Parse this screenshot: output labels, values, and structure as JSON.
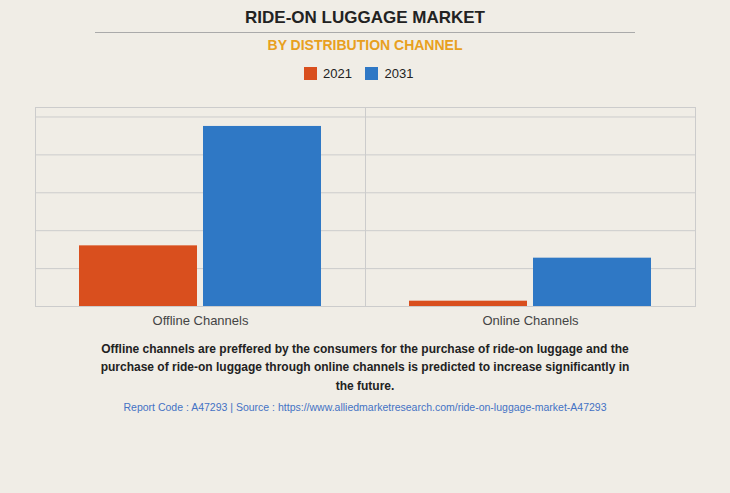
{
  "chart_data": {
    "type": "bar",
    "title": "RIDE-ON LUGGAGE MARKET",
    "subtitle": "BY DISTRIBUTION CHANNEL",
    "categories": [
      "Offline Channels",
      "Online Channels"
    ],
    "series": [
      {
        "name": "2021",
        "color": "#D94F1E",
        "values": [
          3.2,
          0.28
        ]
      },
      {
        "name": "2031",
        "color": "#2F78C5",
        "values": [
          9.5,
          2.55
        ]
      }
    ],
    "ylim": [
      0,
      10.5
    ],
    "yticks": [
      0,
      2,
      4,
      6,
      8,
      10
    ],
    "grid": true,
    "legend": "top",
    "tick_labels": "x",
    "annotations": [
      "Offline channels are preffered by the consumers for the purchase of ride-on luggage and the\npurchase of ride-on luggage through online channels is predicted to increase significantly in\nthe future.",
      "Report Code : A47293  |  Source : https://www.alliedmarketresearch.com/ride-on-luggage-market-A47293"
    ]
  }
}
